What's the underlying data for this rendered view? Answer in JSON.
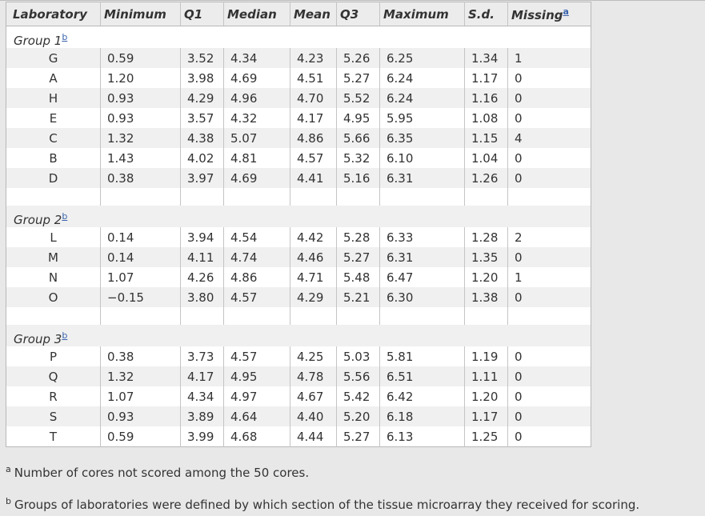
{
  "headers": [
    "Laboratory",
    "Minimum",
    "Q1",
    "Median",
    "Mean",
    "Q3",
    "Maximum",
    "S.d.",
    "Missing"
  ],
  "missing_ref": "a",
  "groups": [
    {
      "label": "Group 1",
      "ref": "b",
      "rows": [
        [
          "G",
          "0.59",
          "3.52",
          "4.34",
          "4.23",
          "5.26",
          "6.25",
          "1.34",
          "1"
        ],
        [
          "A",
          "1.20",
          "3.98",
          "4.69",
          "4.51",
          "5.27",
          "6.24",
          "1.17",
          "0"
        ],
        [
          "H",
          "0.93",
          "4.29",
          "4.96",
          "4.70",
          "5.52",
          "6.24",
          "1.16",
          "0"
        ],
        [
          "E",
          "0.93",
          "3.57",
          "4.32",
          "4.17",
          "4.95",
          "5.95",
          "1.08",
          "0"
        ],
        [
          "C",
          "1.32",
          "4.38",
          "5.07",
          "4.86",
          "5.66",
          "6.35",
          "1.15",
          "4"
        ],
        [
          "B",
          "1.43",
          "4.02",
          "4.81",
          "4.57",
          "5.32",
          "6.10",
          "1.04",
          "0"
        ],
        [
          "D",
          "0.38",
          "3.97",
          "4.69",
          "4.41",
          "5.16",
          "6.31",
          "1.26",
          "0"
        ]
      ]
    },
    {
      "label": "Group 2",
      "ref": "b",
      "rows": [
        [
          "L",
          "0.14",
          "3.94",
          "4.54",
          "4.42",
          "5.28",
          "6.33",
          "1.28",
          "2"
        ],
        [
          "M",
          "0.14",
          "4.11",
          "4.74",
          "4.46",
          "5.27",
          "6.31",
          "1.35",
          "0"
        ],
        [
          "N",
          "1.07",
          "4.26",
          "4.86",
          "4.71",
          "5.48",
          "6.47",
          "1.20",
          "1"
        ],
        [
          "O",
          "−0.15",
          "3.80",
          "4.57",
          "4.29",
          "5.21",
          "6.30",
          "1.38",
          "0"
        ]
      ]
    },
    {
      "label": "Group 3",
      "ref": "b",
      "rows": [
        [
          "P",
          "0.38",
          "3.73",
          "4.57",
          "4.25",
          "5.03",
          "5.81",
          "1.19",
          "0"
        ],
        [
          "Q",
          "1.32",
          "4.17",
          "4.95",
          "4.78",
          "5.56",
          "6.51",
          "1.11",
          "0"
        ],
        [
          "R",
          "1.07",
          "4.34",
          "4.97",
          "4.67",
          "5.42",
          "6.42",
          "1.20",
          "0"
        ],
        [
          "S",
          "0.93",
          "3.89",
          "4.64",
          "4.40",
          "5.20",
          "6.18",
          "1.17",
          "0"
        ],
        [
          "T",
          "0.59",
          "3.99",
          "4.68",
          "4.44",
          "5.27",
          "6.13",
          "1.25",
          "0"
        ]
      ]
    }
  ],
  "footnotes": [
    {
      "mark": "a",
      "text": "Number of cores not scored among the 50 cores."
    },
    {
      "mark": "b",
      "text": "Groups of laboratories were defined by which section of the tissue microarray they received for scoring."
    }
  ]
}
